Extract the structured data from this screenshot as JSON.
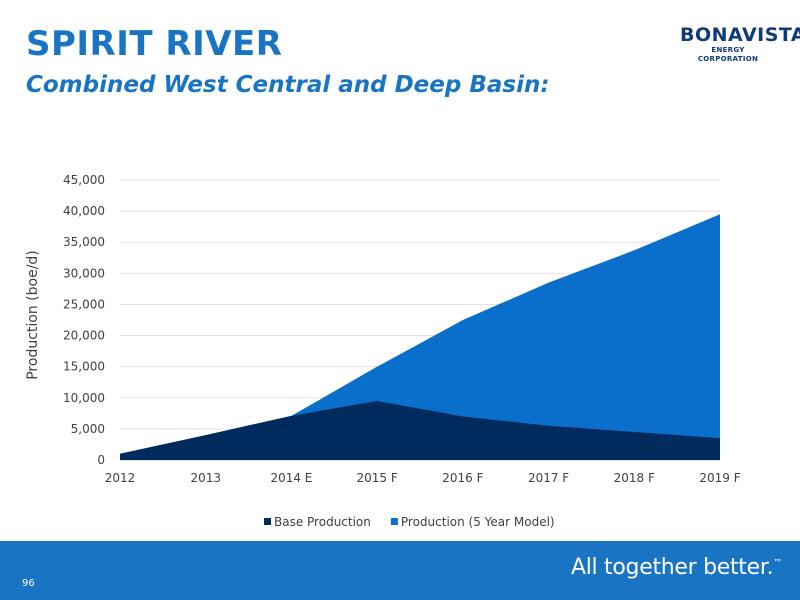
{
  "header": {
    "title": "SPIRIT RIVER",
    "subtitle": "Combined West Central and Deep Basin:"
  },
  "logo": {
    "name": "BONAVISTA",
    "tagline": "ENERGY CORPORATION"
  },
  "footer": {
    "page_number": "96",
    "slogan": "All together better.",
    "slogan_mark": "™"
  },
  "colors": {
    "brand_blue": "#1a74c4",
    "base_production": "#002b5c",
    "model_production": "#0a6fcb"
  },
  "chart_data": {
    "type": "area",
    "stacked": false,
    "categories": [
      "2012",
      "2013",
      "2014 E",
      "2015 F",
      "2016 F",
      "2017 F",
      "2018 F",
      "2019 F"
    ],
    "xlabel": "",
    "ylabel": "Production (boe/d)",
    "ylim": [
      0,
      45000
    ],
    "y_ticks": [
      "0",
      "5,000",
      "10,000",
      "15,000",
      "20,000",
      "25,000",
      "30,000",
      "35,000",
      "40,000",
      "45,000"
    ],
    "grid": true,
    "legend_position": "bottom",
    "series": [
      {
        "name": "Production (5 Year Model)",
        "color": "#0a6fcb",
        "values": [
          1000,
          4000,
          7100,
          15000,
          22500,
          28500,
          33700,
          39500
        ]
      },
      {
        "name": "Base Production",
        "color": "#002b5c",
        "values": [
          1000,
          4000,
          7100,
          9500,
          7000,
          5500,
          4500,
          3500
        ]
      }
    ],
    "legend": [
      "Base Production",
      "Production (5 Year Model)"
    ]
  }
}
